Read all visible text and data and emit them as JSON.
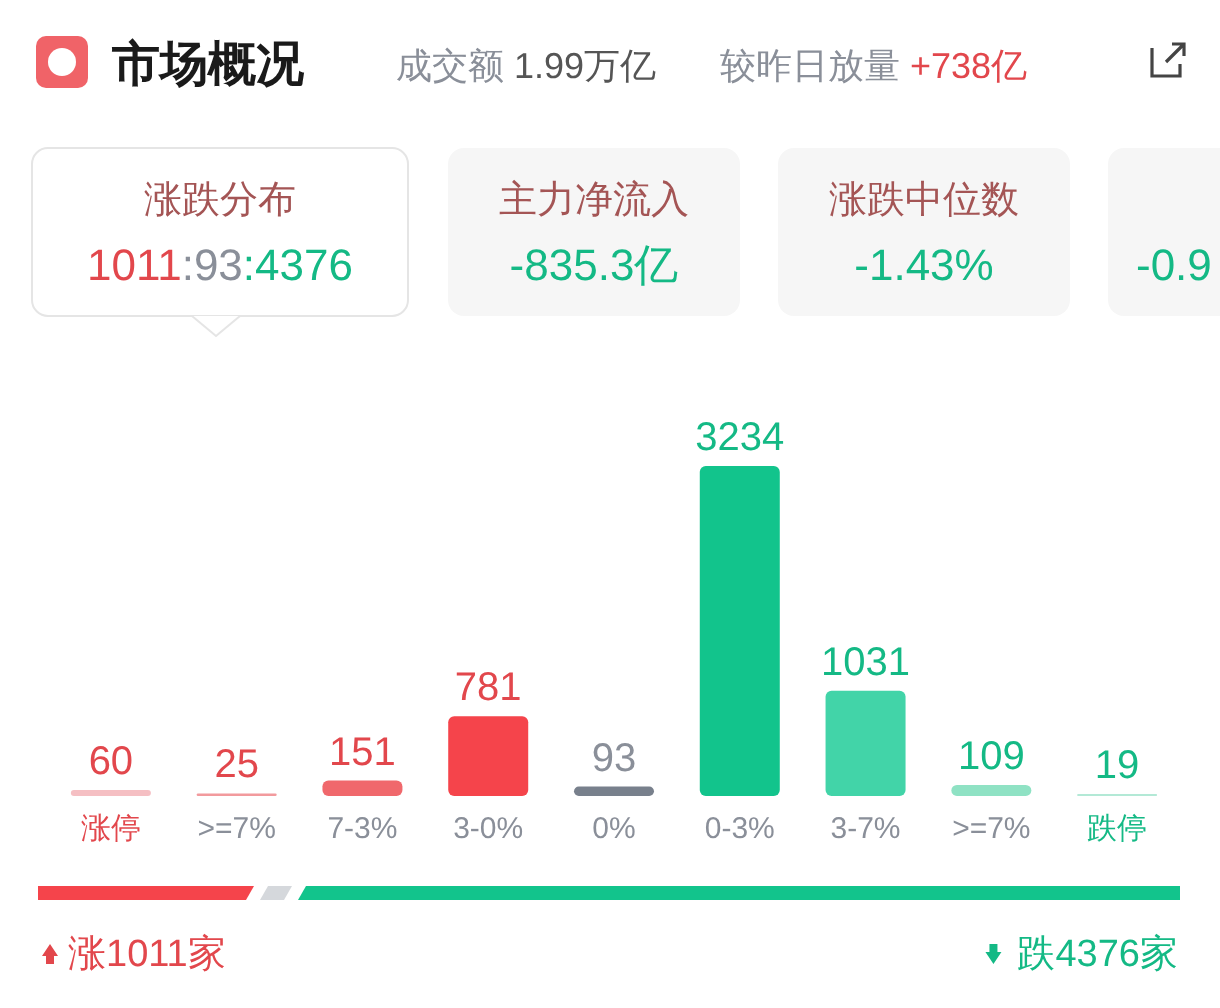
{
  "chart_data": {
    "type": "bar",
    "title": "市场概况",
    "annotations": [
      "成交额 1.99万亿",
      "较昨日放量 +738亿",
      "涨跌分布",
      "1011:93:4376",
      "主力净流入",
      "-835.3亿",
      "涨跌中位数",
      "-1.43%",
      "-0.9",
      "涨1011家",
      "跌4376家"
    ],
    "categories": [
      "涨停",
      ">=7%",
      "7-3%",
      "3-0%",
      "0%",
      "0-3%",
      "3-7%",
      ">=7%",
      "跌停"
    ],
    "values": [
      60,
      25,
      151,
      781,
      93,
      3234,
      1031,
      109,
      19
    ],
    "colors": [
      "#f5bfc3",
      "#f29a9d",
      "#f0686c",
      "#f5444b",
      "#78808c",
      "#12c48c",
      "#42d4a8",
      "#8fe2c4",
      "#b3e9d6"
    ],
    "data_labels": true
  }
}
